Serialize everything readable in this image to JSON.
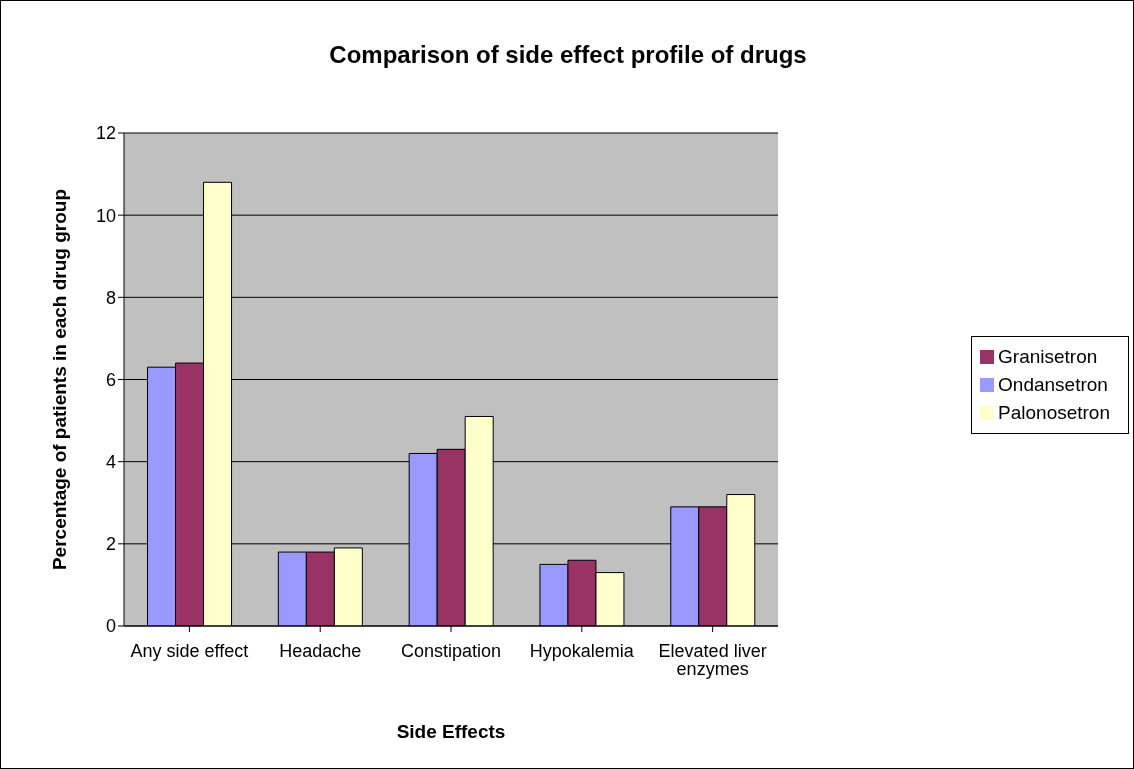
{
  "chart_data": {
    "type": "bar",
    "title": "Comparison of side effect profile of drugs",
    "xlabel": "Side Effects",
    "ylabel": "Percentage of patients in each drug group",
    "categories": [
      "Any side effect",
      "Headache",
      "Constipation",
      "Hypokalemia",
      "Elevated liver enzymes"
    ],
    "series": [
      {
        "name": "Ondansetron",
        "color": "#9999ff",
        "values": [
          6.3,
          1.8,
          4.2,
          1.5,
          2.9
        ]
      },
      {
        "name": "Granisetron",
        "color": "#993366",
        "values": [
          6.4,
          1.8,
          4.3,
          1.6,
          2.9
        ]
      },
      {
        "name": "Palonosetron",
        "color": "#ffffcc",
        "values": [
          10.8,
          1.9,
          5.1,
          1.3,
          3.2
        ]
      }
    ],
    "ylim": [
      0,
      12
    ],
    "yticks": [
      0,
      2,
      4,
      6,
      8,
      10,
      12
    ],
    "grid": "y",
    "legend": "right"
  }
}
